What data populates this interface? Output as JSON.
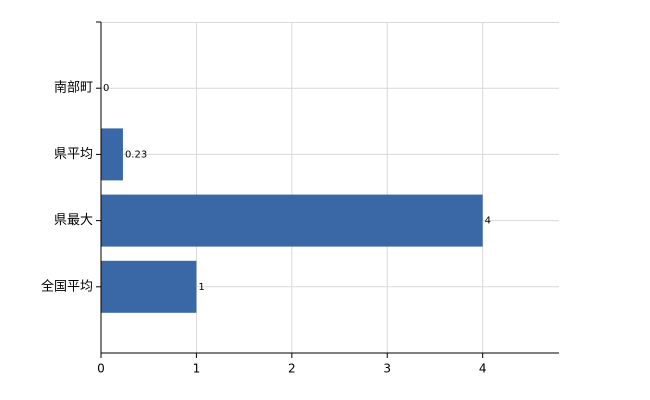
{
  "chart_data": {
    "type": "hbar",
    "categories": [
      "南部町",
      "県平均",
      "県最大",
      "全国平均"
    ],
    "values": [
      0,
      0.23,
      4,
      1
    ],
    "color": "#3a67a6",
    "xlim": [
      0,
      4.8
    ],
    "xticks": [
      0,
      1,
      2,
      3,
      4
    ],
    "grid": true
  }
}
